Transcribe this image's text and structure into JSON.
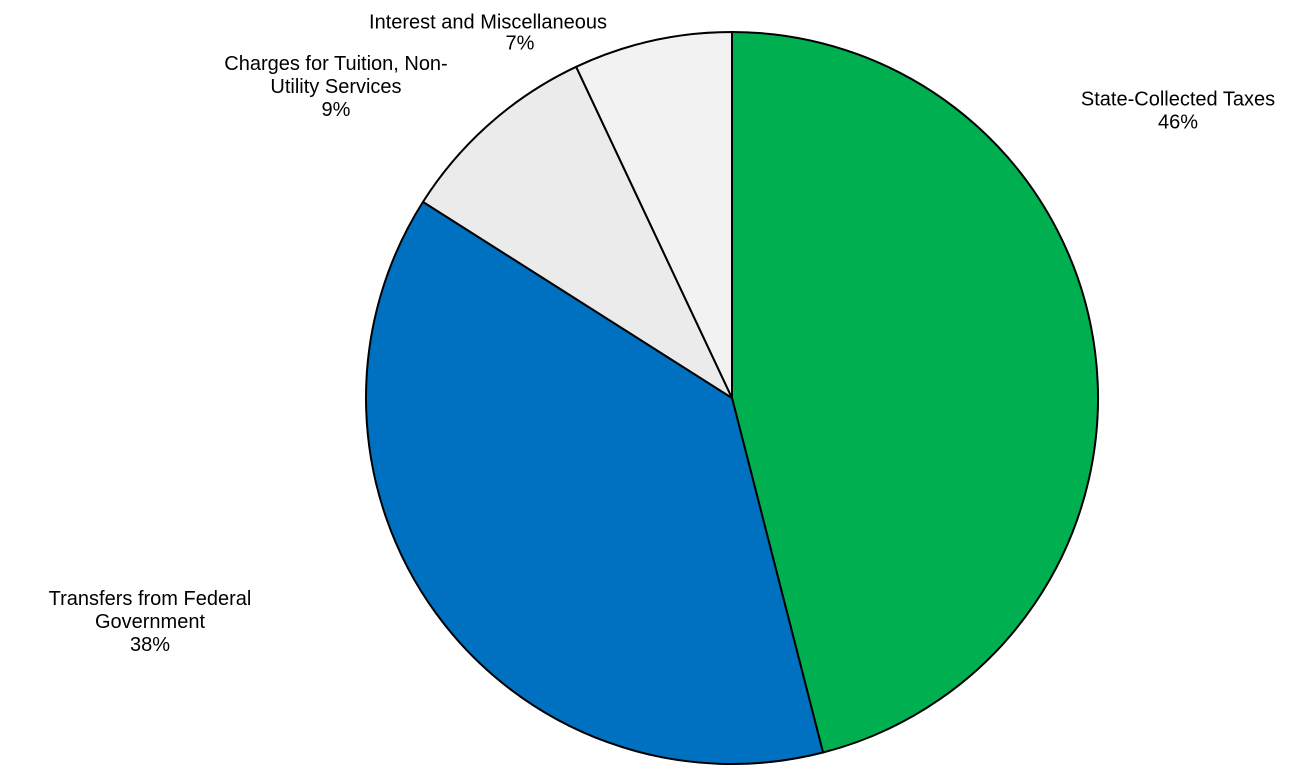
{
  "chart_data": {
    "type": "pie",
    "slices": [
      {
        "label_lines": [
          "State-Collected Taxes"
        ],
        "value_label": "46%",
        "value": 46,
        "color": "#00B050"
      },
      {
        "label_lines": [
          "Transfers from Federal",
          "Government"
        ],
        "value_label": "38%",
        "value": 38,
        "color": "#0070C0"
      },
      {
        "label_lines": [
          "Charges for Tuition, Non-",
          "Utility Services"
        ],
        "value_label": "9%",
        "value": 9,
        "color": "#EBEBEB"
      },
      {
        "label_lines": [
          "Interest and Miscellaneous"
        ],
        "value_label": "7%",
        "value": 7,
        "color": "#F2F2F2"
      }
    ],
    "start_angle": "12 o'clock",
    "direction": "clockwise",
    "legend": "none"
  }
}
